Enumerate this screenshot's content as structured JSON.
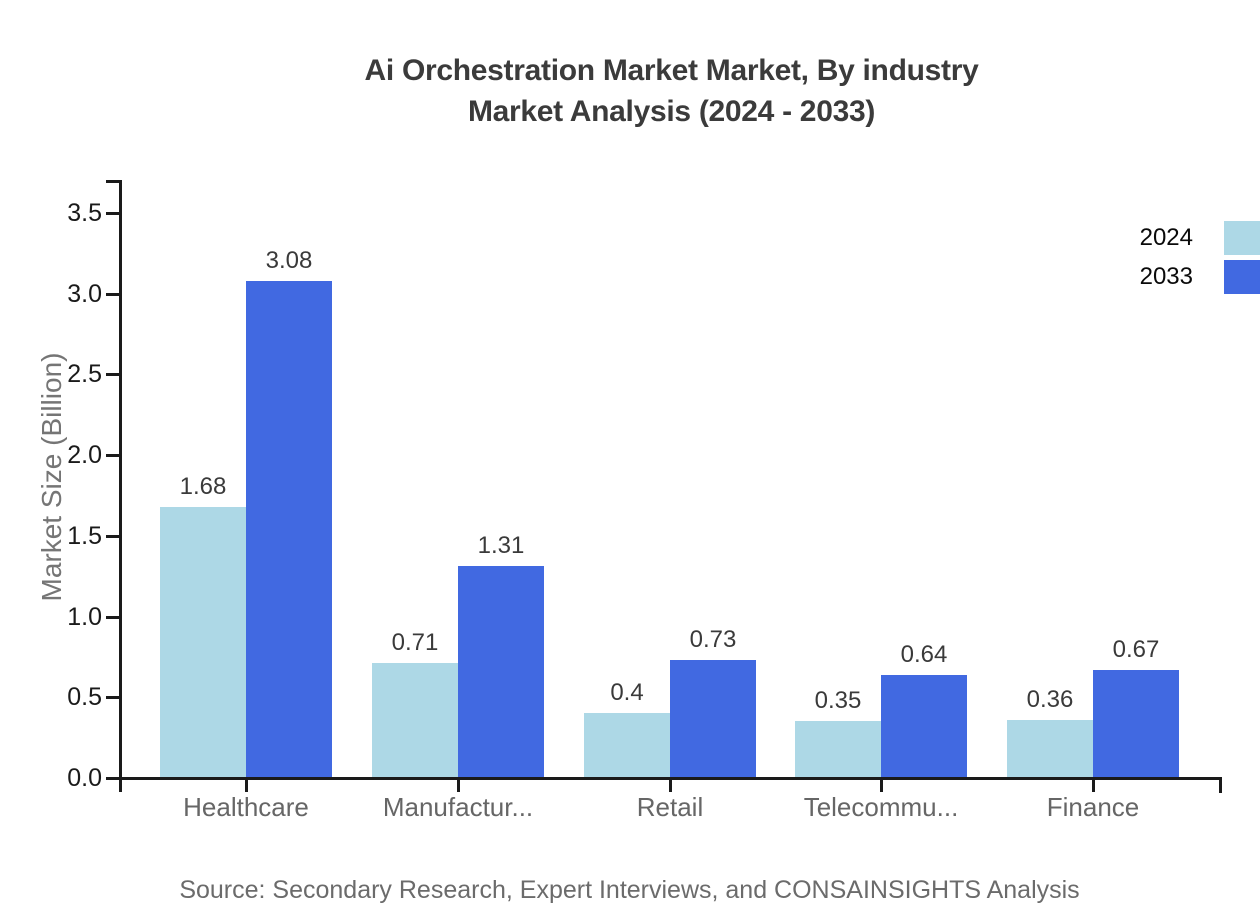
{
  "header": {
    "title_line1": "Ai Orchestration Market Market, By industry",
    "title_line2": "Market Analysis (2024 - 2033)"
  },
  "footer": {
    "source": "Source: Secondary Research, Expert Interviews, and CONSAINSIGHTS Analysis"
  },
  "colors": {
    "series_2024": "#add8e6",
    "series_2033": "#4169e1",
    "axis": "#1a1a1a",
    "title_text": "#3b3b3b",
    "category_label": "#666666",
    "axis_title": "#757575",
    "source_text": "#6b6b6b",
    "value_label": "#3a3a3a"
  },
  "chart_data": {
    "type": "bar",
    "title": "Ai Orchestration Market Market, By industry Market Analysis (2024 - 2033)",
    "categories": [
      "Healthcare",
      "Manufactur...",
      "Retail",
      "Telecommu...",
      "Finance"
    ],
    "series": [
      {
        "name": "2024",
        "color": "#add8e6",
        "values": [
          1.68,
          0.71,
          0.4,
          0.35,
          0.36
        ],
        "value_labels": [
          "1.68",
          "0.71",
          "0.4",
          "0.35",
          "0.36"
        ]
      },
      {
        "name": "2033",
        "color": "#4169e1",
        "values": [
          3.08,
          1.31,
          0.73,
          0.64,
          0.67
        ],
        "value_labels": [
          "3.08",
          "1.31",
          "0.73",
          "0.64",
          "0.67"
        ]
      }
    ],
    "xlabel": "",
    "ylabel": "Market Size (Billion)",
    "ylim": [
      0,
      3.7
    ],
    "yticks": [
      0.0,
      0.5,
      1.0,
      1.5,
      2.0,
      2.5,
      3.0,
      3.5
    ],
    "ytick_labels": [
      "0.0",
      "0.5",
      "1.0",
      "1.5",
      "2.0",
      "2.5",
      "3.0",
      "3.5"
    ],
    "grid": false,
    "bar_value_labels_shown": true,
    "legend_position": "upper-right, outside plot at canvas edge",
    "legend": [
      {
        "label": "2024",
        "color": "#add8e6"
      },
      {
        "label": "2033",
        "color": "#4169e1"
      }
    ]
  }
}
